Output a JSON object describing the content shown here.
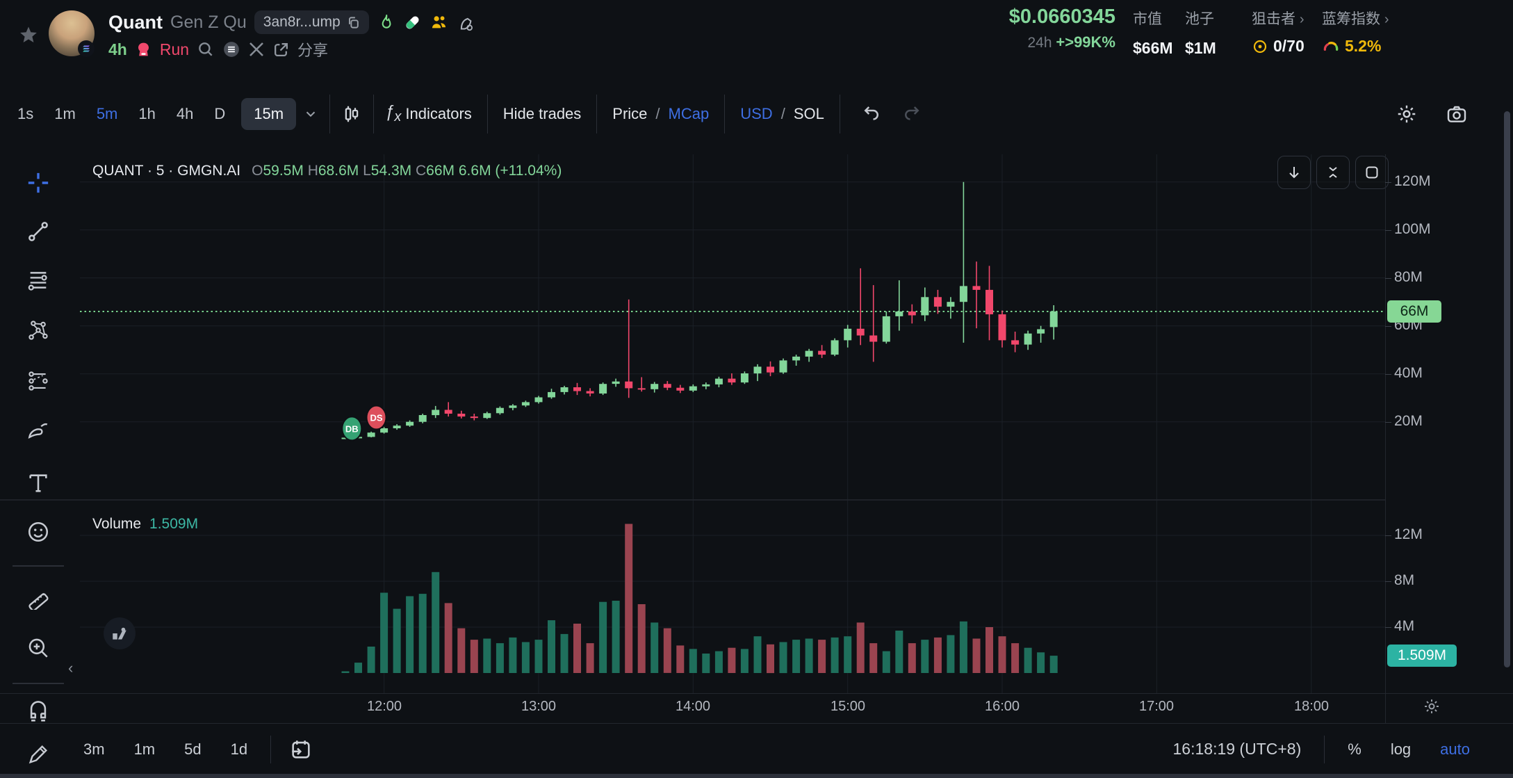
{
  "header": {
    "token": {
      "name": "Quant",
      "fullname": "Gen Z Qu",
      "address": "3an8r...ump"
    },
    "meta": {
      "age": "4h",
      "platform": "Run",
      "share_label": "分享"
    },
    "stats": {
      "price": "$0.0660345",
      "change_period": "24h",
      "change": "+>99K%",
      "mcap": {
        "label": "市值",
        "value": "$66M"
      },
      "pool": {
        "label": "池子",
        "value": "$1M"
      },
      "snipers": {
        "label": "狙击者",
        "value": "0/70",
        "chevron": "›"
      },
      "bluechip": {
        "label": "蓝筹指数",
        "value": "5.2%",
        "chevron": "›"
      }
    }
  },
  "toolbar": {
    "intervals": [
      "1s",
      "1m",
      "5m",
      "1h",
      "4h",
      "D"
    ],
    "selected_interval": "15m",
    "indicators_label": "Indicators",
    "hide_trades": "Hide trades",
    "price_label": "Price",
    "slash": "/",
    "mcap_label": "MCap",
    "usd_label": "USD",
    "sol_label": "SOL"
  },
  "legend": {
    "symbol": "QUANT · 5 · GMGN.AI",
    "o_label": "O",
    "o": "59.5M",
    "h_label": "H",
    "h": "68.6M",
    "l_label": "L",
    "l": "54.3M",
    "c_label": "C",
    "c": "66M",
    "change": "6.6M (+11.04%)"
  },
  "volume_legend": {
    "label": "Volume",
    "value": "1.509M"
  },
  "bottom": {
    "ranges": [
      "3m",
      "1m",
      "5d",
      "1d"
    ],
    "clock": "16:18:19 (UTC+8)",
    "percent": "%",
    "log": "log",
    "auto": "auto"
  },
  "chart_data": {
    "type": "candlestick+volume",
    "symbol": "QUANT · 5 · GMGN.AI",
    "interval_minutes": 5,
    "start_time": "11:45",
    "time_ticks": [
      "12:00",
      "13:00",
      "14:00",
      "15:00",
      "16:00",
      "17:00",
      "18:00"
    ],
    "price_axis": {
      "unit": "M",
      "ticks": [
        "120M",
        "100M",
        "80M",
        "60M",
        "40M",
        "20M"
      ],
      "tick_values": [
        120,
        100,
        80,
        60,
        40,
        20
      ],
      "current_label": "66M",
      "current_value": 66
    },
    "volume_axis": {
      "ticks": [
        "12M",
        "8M",
        "4M"
      ],
      "tick_values": [
        12,
        8,
        4
      ],
      "current_label": "1.509M",
      "current_value": 1.509
    },
    "price_line": {
      "value": 66,
      "label": "66M",
      "style": "dotted"
    },
    "markers": [
      {
        "label": "DB",
        "index": 0.5,
        "price": 17.2,
        "color": "#35a273"
      },
      {
        "label": "DS",
        "index": 2.4,
        "price": 21.8,
        "color": "#dd4f5c"
      }
    ],
    "ohlcv_note": "each candle = [open, high, low, close, volume] in M (market cap)",
    "candles": [
      [
        13.2,
        13.6,
        13.0,
        13.4,
        0.15
      ],
      [
        13.4,
        13.9,
        13.2,
        13.7,
        0.9
      ],
      [
        13.7,
        15.9,
        13.5,
        15.5,
        2.3
      ],
      [
        15.5,
        17.8,
        15.1,
        17.3,
        7.0
      ],
      [
        17.3,
        19.0,
        16.7,
        18.4,
        5.6
      ],
      [
        18.4,
        20.6,
        17.9,
        20.0,
        6.7
      ],
      [
        20.0,
        23.4,
        19.4,
        22.8,
        6.9
      ],
      [
        22.8,
        26.6,
        21.6,
        25.0,
        8.8
      ],
      [
        25.0,
        28.2,
        22.2,
        23.4,
        6.1
      ],
      [
        23.4,
        24.6,
        21.4,
        22.2,
        3.9
      ],
      [
        22.2,
        23.4,
        20.6,
        21.6,
        2.9
      ],
      [
        21.6,
        24.2,
        21.2,
        23.6,
        3.0
      ],
      [
        23.6,
        26.4,
        23.0,
        25.8,
        2.6
      ],
      [
        25.8,
        27.4,
        24.8,
        26.8,
        3.1
      ],
      [
        26.8,
        28.8,
        26.2,
        28.2,
        2.7
      ],
      [
        28.2,
        30.8,
        27.6,
        30.2,
        2.9
      ],
      [
        30.2,
        33.8,
        29.6,
        32.4,
        4.6
      ],
      [
        32.4,
        35.0,
        31.4,
        34.4,
        3.4
      ],
      [
        34.4,
        36.2,
        31.2,
        32.8,
        4.3
      ],
      [
        32.8,
        34.0,
        30.6,
        31.8,
        2.6
      ],
      [
        31.8,
        36.4,
        31.2,
        35.8,
        6.2
      ],
      [
        35.8,
        38.0,
        34.6,
        36.8,
        6.3
      ],
      [
        36.8,
        71.0,
        30.0,
        34.0,
        13.0
      ],
      [
        34.0,
        38.6,
        32.6,
        33.6,
        6.0
      ],
      [
        33.6,
        36.6,
        32.2,
        35.8,
        4.4
      ],
      [
        35.8,
        37.0,
        33.2,
        34.2,
        3.9
      ],
      [
        34.2,
        35.4,
        32.0,
        33.0,
        2.4
      ],
      [
        33.0,
        35.6,
        32.4,
        34.8,
        2.1
      ],
      [
        34.8,
        36.4,
        33.6,
        35.6,
        1.7
      ],
      [
        35.6,
        38.8,
        34.4,
        38.0,
        1.9
      ],
      [
        38.0,
        40.2,
        35.4,
        36.4,
        2.2
      ],
      [
        36.4,
        41.0,
        35.8,
        40.2,
        2.1
      ],
      [
        40.2,
        44.0,
        37.0,
        43.0,
        3.2
      ],
      [
        43.0,
        45.2,
        39.0,
        40.6,
        2.5
      ],
      [
        40.6,
        46.4,
        40.0,
        45.6,
        2.7
      ],
      [
        45.6,
        48.0,
        43.4,
        47.2,
        2.9
      ],
      [
        47.2,
        50.4,
        45.0,
        49.6,
        3.0
      ],
      [
        49.6,
        52.0,
        46.6,
        48.0,
        2.9
      ],
      [
        48.0,
        54.8,
        47.4,
        54.0,
        3.1
      ],
      [
        54.0,
        60.4,
        51.0,
        58.8,
        3.2
      ],
      [
        58.8,
        84.0,
        52.0,
        56.0,
        4.4
      ],
      [
        56.0,
        77.0,
        45.0,
        53.4,
        2.6
      ],
      [
        53.4,
        66.0,
        52.6,
        64.0,
        1.9
      ],
      [
        64.0,
        79.0,
        58.0,
        66.0,
        3.7
      ],
      [
        66.0,
        69.0,
        61.0,
        64.4,
        2.6
      ],
      [
        64.4,
        76.0,
        62.0,
        72.0,
        2.9
      ],
      [
        72.0,
        75.0,
        65.0,
        68.0,
        3.1
      ],
      [
        68.0,
        72.0,
        63.0,
        70.0,
        3.3
      ],
      [
        70.0,
        120.0,
        53.0,
        76.6,
        4.5
      ],
      [
        76.6,
        86.8,
        59.0,
        75.0,
        3.0
      ],
      [
        75.0,
        85.0,
        54.0,
        64.8,
        4.0
      ],
      [
        64.8,
        66.4,
        51.0,
        54.0,
        3.2
      ],
      [
        54.0,
        57.6,
        49.0,
        52.2,
        2.6
      ],
      [
        52.2,
        58.0,
        50.0,
        56.8,
        2.2
      ],
      [
        56.8,
        60.0,
        53.0,
        58.6,
        1.8
      ],
      [
        59.5,
        68.6,
        54.3,
        66.0,
        1.509
      ]
    ],
    "colors": {
      "up": "#83d69a",
      "down": "#f1476b",
      "vol_up": "#1f6f5c",
      "vol_down": "#9a4450",
      "price_line": "#78d18c",
      "grid": "#1b2027"
    }
  }
}
